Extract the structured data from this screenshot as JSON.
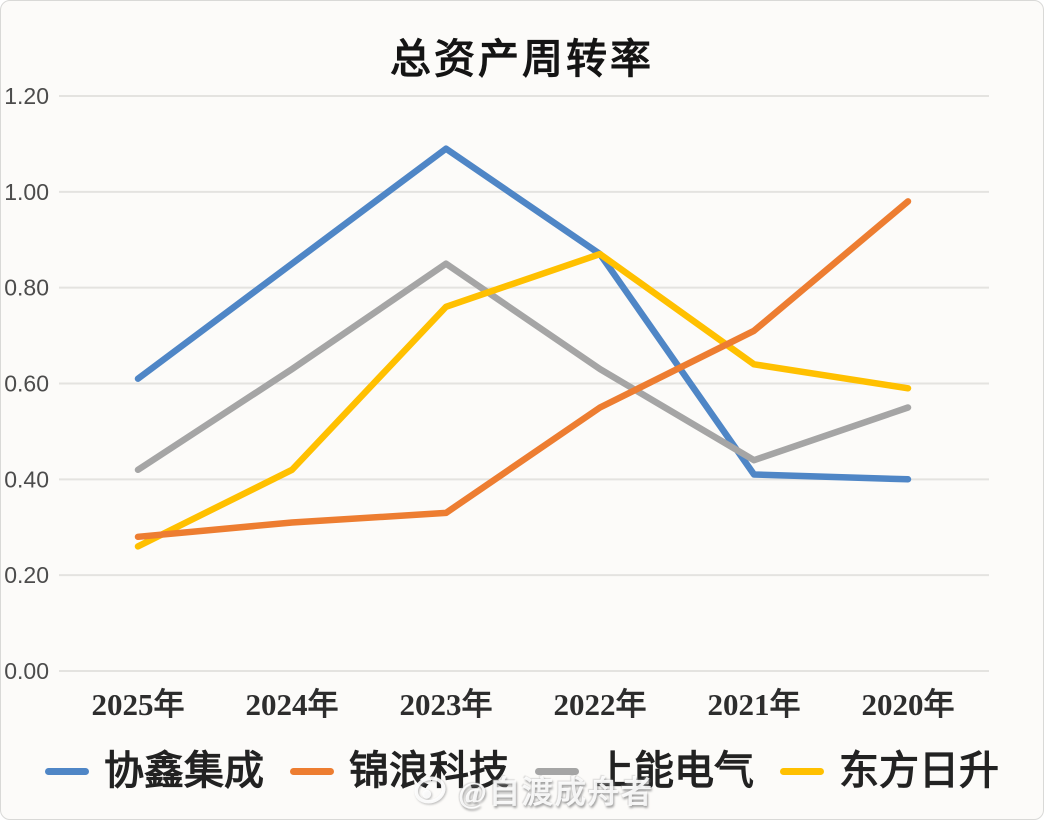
{
  "chart_data": {
    "type": "line",
    "title": "总资产周转率",
    "categories": [
      "2025年",
      "2024年",
      "2023年",
      "2022年",
      "2021年",
      "2020年"
    ],
    "series": [
      {
        "name": "协鑫集成",
        "color": "#4f86c6",
        "values": [
          0.61,
          0.85,
          1.09,
          0.87,
          0.41,
          0.4
        ]
      },
      {
        "name": "锦浪科技",
        "color": "#ed7d31",
        "values": [
          0.28,
          0.31,
          0.33,
          0.55,
          0.71,
          0.98
        ]
      },
      {
        "name": "上能电气",
        "color": "#a5a5a5",
        "values": [
          0.42,
          0.63,
          0.85,
          0.63,
          0.44,
          0.55
        ]
      },
      {
        "name": "东方日升",
        "color": "#ffc000",
        "values": [
          0.26,
          0.42,
          0.76,
          0.87,
          0.64,
          0.59
        ]
      }
    ],
    "ylim": [
      0,
      1.2
    ],
    "ytick_step": 0.2,
    "ytick_labels": [
      "0.00",
      "0.20",
      "0.40",
      "0.60",
      "0.80",
      "1.00",
      "1.20"
    ],
    "xlabel": "",
    "ylabel": "",
    "grid": true,
    "legend_position": "bottom",
    "draw_order": [
      0,
      2,
      3,
      1
    ]
  },
  "watermark": {
    "text": "@自渡成舟者",
    "logo": "weibo-eye-logo"
  }
}
